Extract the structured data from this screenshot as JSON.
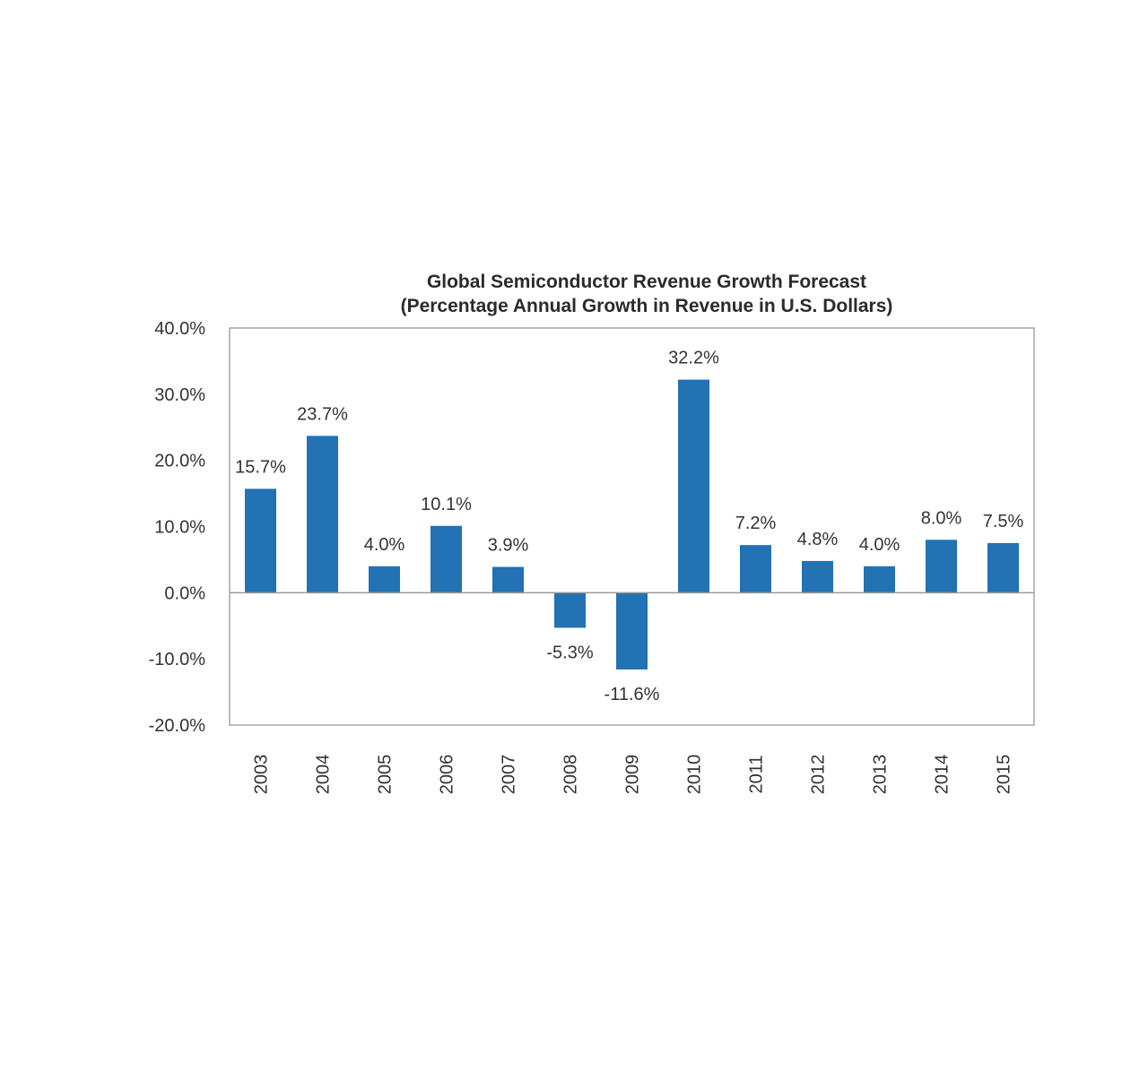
{
  "chart_data": {
    "type": "bar",
    "title": "Global Semiconductor Revenue Growth Forecast",
    "subtitle": "(Percentage Annual Growth in Revenue in U.S. Dollars)",
    "xlabel": "",
    "ylabel": "",
    "categories": [
      "2003",
      "2004",
      "2005",
      "2006",
      "2007",
      "2008",
      "2009",
      "2010",
      "2011",
      "2012",
      "2013",
      "2014",
      "2015"
    ],
    "values": [
      15.7,
      23.7,
      4.0,
      10.1,
      3.9,
      -5.3,
      -11.6,
      32.2,
      7.2,
      4.8,
      4.0,
      8.0,
      7.5
    ],
    "data_labels": [
      "15.7%",
      "23.7%",
      "4.0%",
      "10.1%",
      "3.9%",
      "-5.3%",
      "-11.6%",
      "32.2%",
      "7.2%",
      "4.8%",
      "4.0%",
      "8.0%",
      "7.5%"
    ],
    "ylim": [
      -20,
      40
    ],
    "yticks": [
      40,
      30,
      20,
      10,
      0,
      -10,
      -20
    ],
    "ytick_labels": [
      "40.0%",
      "30.0%",
      "20.0%",
      "10.0%",
      "0.0%",
      "-10.0%",
      "-20.0%"
    ],
    "grid": false,
    "legend": "none",
    "colors": {
      "bar": "#2272b4",
      "axis": "#a6a6a6",
      "zero_line": "#9a9a9a"
    }
  }
}
